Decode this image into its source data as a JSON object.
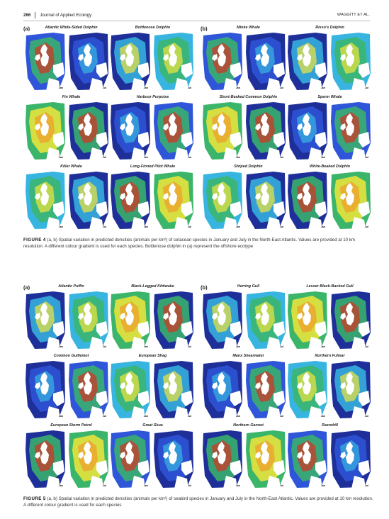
{
  "header": {
    "page_number": "266",
    "journal": "Journal of Applied Ecology",
    "authors": "WAGGITT ET AL."
  },
  "figures": [
    {
      "panels": [
        {
          "letter": "(a)",
          "species": [
            "Atlantic White-Sided Dolphin",
            "Bottlenose Dolphin",
            "Fin Whale",
            "Harbour Porpoise",
            "Killer Whale",
            "Long-Finned Pilot Whale"
          ]
        },
        {
          "letter": "(b)",
          "species": [
            "Minke Whale",
            "Risso's Dolphin",
            "Short-Beaked Common Dolphin",
            "Sperm Whale",
            "Striped Dolphin",
            "White-Beaked Dolphin"
          ]
        }
      ],
      "month_labels": [
        "Jan",
        "Jul"
      ],
      "caption_label": "FIGURE 4",
      "caption_text": "(a, b) Spatial variation in predicted densities (animals per km²) of cetacean species in January and July in the North-East Atlantic. Values are provided at 10 km resolution. A different colour gradient is used for each species. Bottlenose dolphin in (a) represent the offshore ecotype"
    },
    {
      "panels": [
        {
          "letter": "(a)",
          "species": [
            "Atlantic Puffin",
            "Black-Legged Kittiwake",
            "Common Guillemot",
            "European Shag",
            "European Storm Petrel",
            "Great Skua"
          ]
        },
        {
          "letter": "(b)",
          "species": [
            "Herring Gull",
            "Lesser Black-Backed Gull",
            "Manx Shearwater",
            "Northern Fulmar",
            "Northern Gannet",
            "Razorbill"
          ]
        }
      ],
      "month_labels": [
        "Jan",
        "Jul"
      ],
      "caption_label": "FIGURE 5",
      "caption_text": "(a, b) Spatial variation in predicted densities (animals per km²) of seabird species in January and July in the North-East Atlantic. Values are provided at 10 km resolution. A different colour gradient is used for each species"
    }
  ],
  "colors": {
    "ocean_dark": "#1f2f9a",
    "land": "#ffffff",
    "high": "#d93020",
    "mid": "#f1e63a",
    "low_mid": "#3bb56a"
  }
}
